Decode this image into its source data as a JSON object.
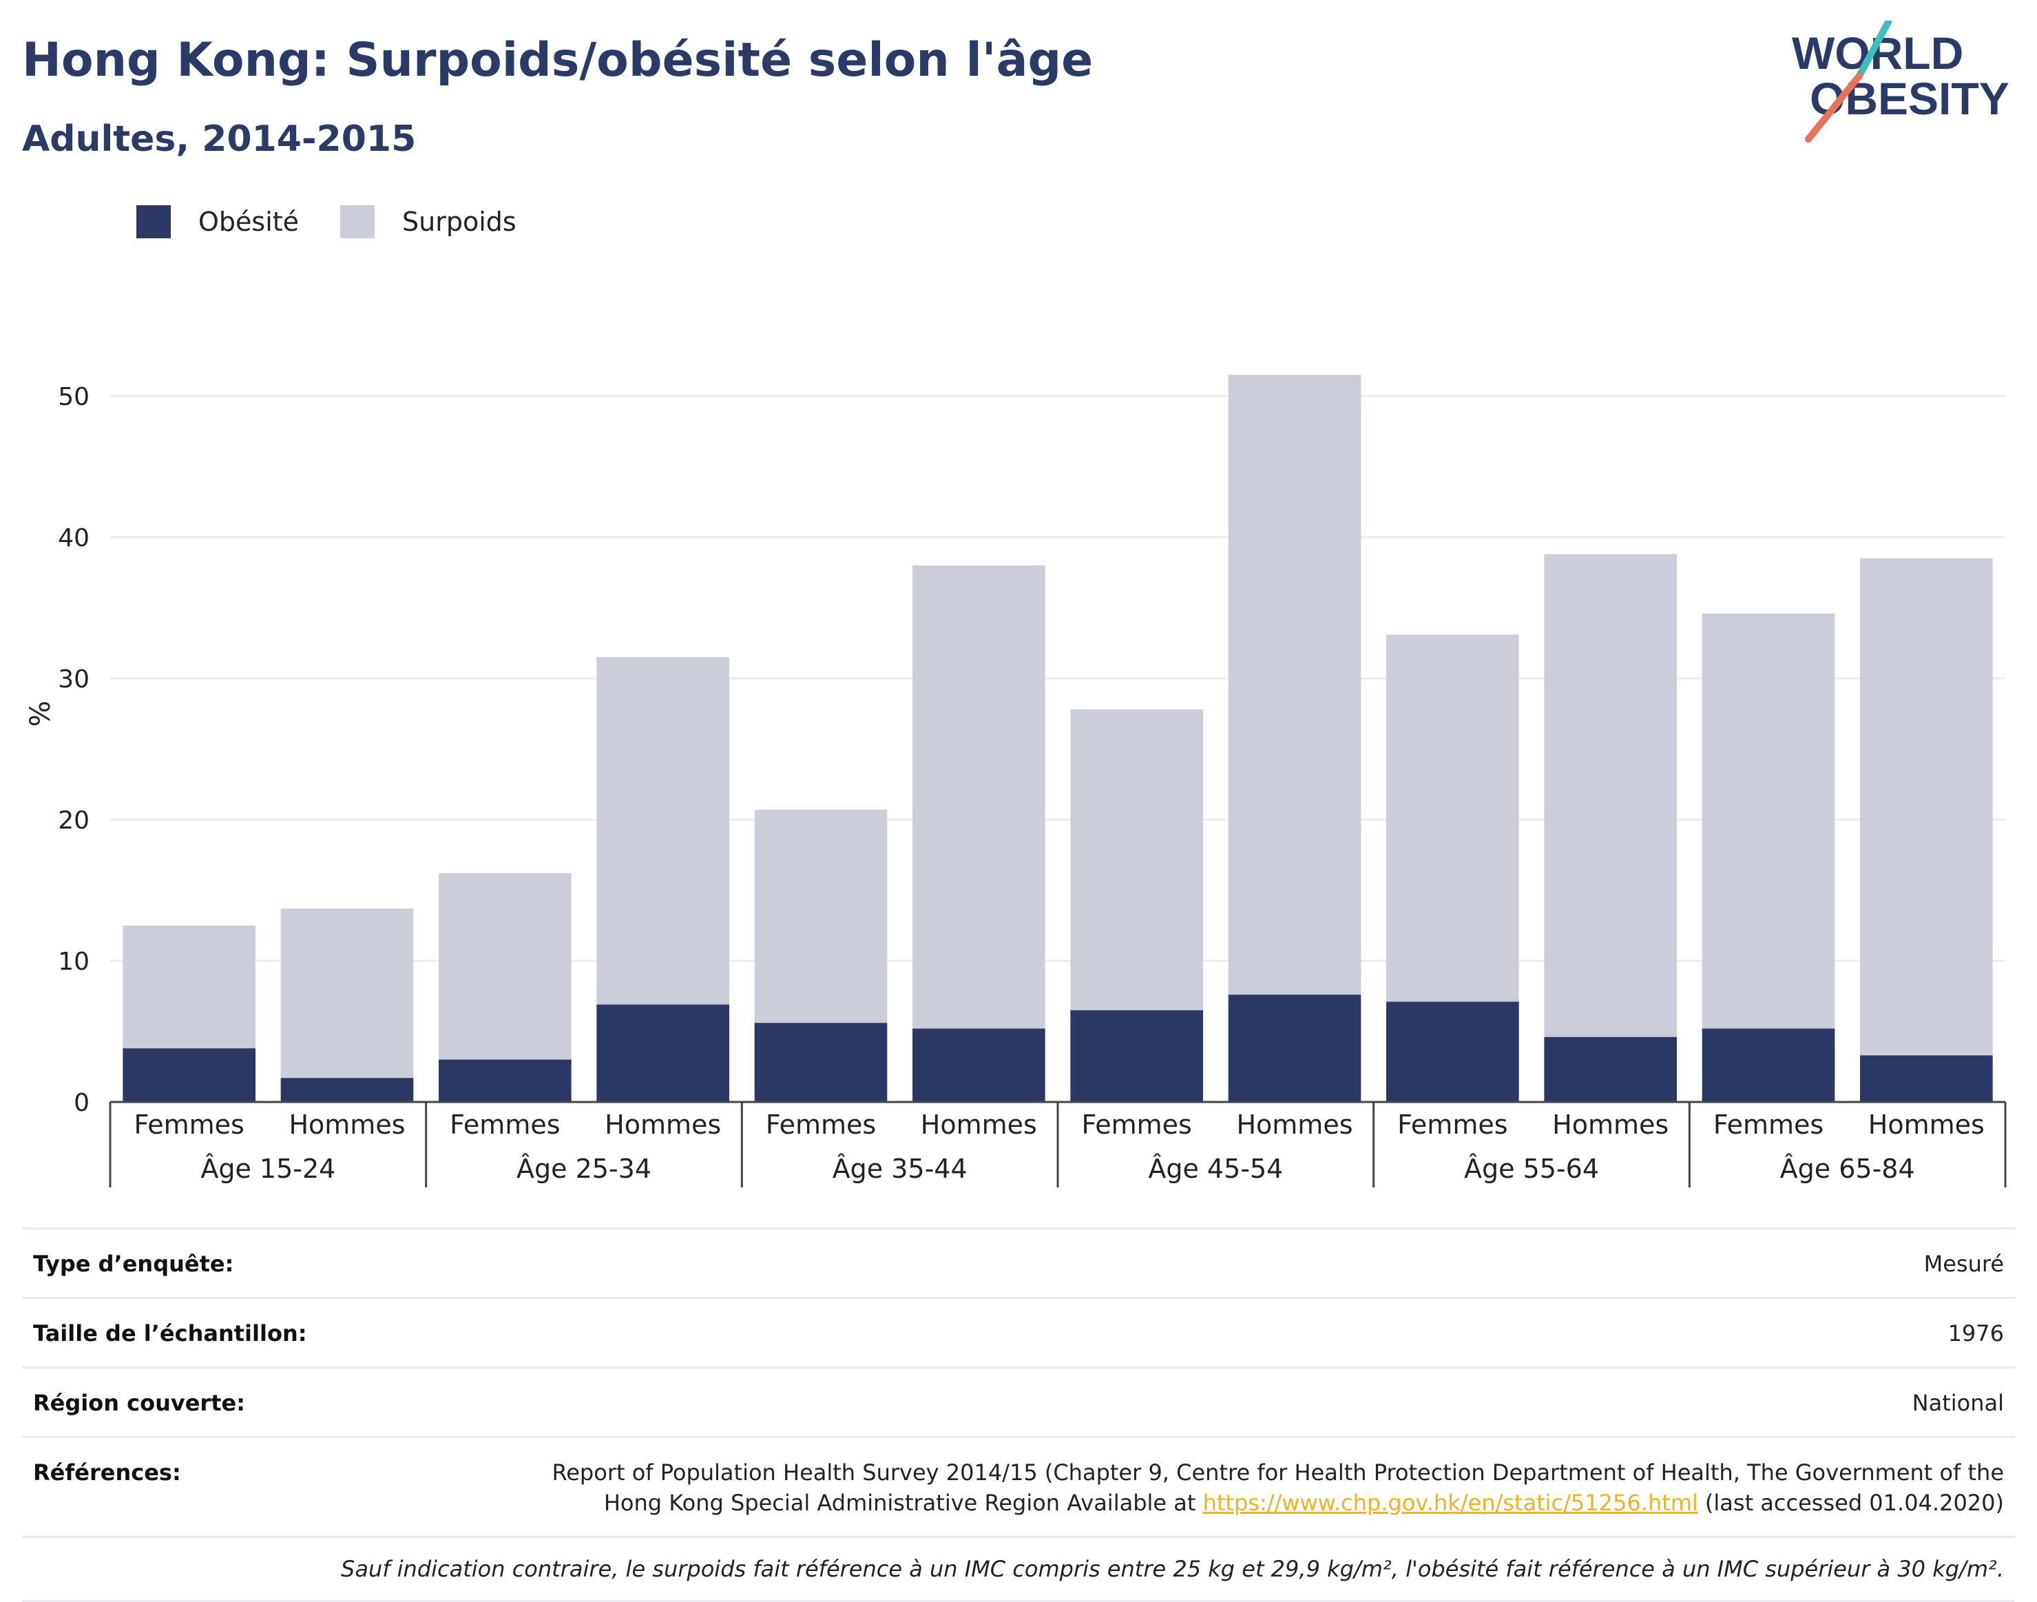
{
  "title": "Hong Kong: Surpoids/obésité selon l'âge",
  "subtitle": "Adultes, 2014-2015",
  "logo": {
    "line1": "WORLD",
    "line2": "OBESITY",
    "colors": [
      "#2b3a67",
      "#e8735a",
      "#3cbfbd"
    ]
  },
  "legend": [
    {
      "label": "Obésité",
      "color": "#2b3765"
    },
    {
      "label": "Surpoids",
      "color": "#cbcdd9"
    }
  ],
  "chart_data": {
    "type": "bar",
    "stacked": true,
    "ylabel": "%",
    "ylim": [
      0,
      55
    ],
    "yticks": [
      0,
      10,
      20,
      30,
      40,
      50
    ],
    "grid": true,
    "legend_position": "top-left",
    "groups": [
      "Âge 15-24",
      "Âge 25-34",
      "Âge 35-44",
      "Âge 45-54",
      "Âge 55-64",
      "Âge 65-84"
    ],
    "subcategories": [
      "Femmes",
      "Hommes"
    ],
    "series": [
      {
        "name": "Obésité",
        "color": "#2b3765",
        "values": [
          3.8,
          1.7,
          3.0,
          6.9,
          5.6,
          5.2,
          6.5,
          7.6,
          7.1,
          4.6,
          5.2,
          3.3
        ]
      },
      {
        "name": "Surpoids",
        "color": "#cbcdd9",
        "values": [
          8.7,
          12.0,
          13.2,
          24.6,
          15.1,
          32.8,
          21.3,
          43.9,
          26.0,
          34.2,
          29.4,
          35.2
        ]
      }
    ]
  },
  "info": {
    "survey_type_label": "Type d’enquête:",
    "survey_type_value": "Mesuré",
    "sample_size_label": "Taille de l’échantillon:",
    "sample_size_value": "1976",
    "region_label": "Région couverte:",
    "region_value": "National",
    "references_label": "Références:",
    "references_text_1": "Report of Population Health Survey 2014/15 (Chapter 9, Centre for Health Protection Department of Health, The Government of the",
    "references_text_2": "Hong Kong Special Administrative Region Available at",
    "references_link": "https://www.chp.gov.hk/en/static/51256.html",
    "references_text_3": "(last accessed 01.04.2020)",
    "note": "Sauf indication contraire, le surpoids fait référence à un IMC compris entre 25 kg et 29,9 kg/m², l'obésité fait référence à un IMC supérieur à 30 kg/m²."
  }
}
